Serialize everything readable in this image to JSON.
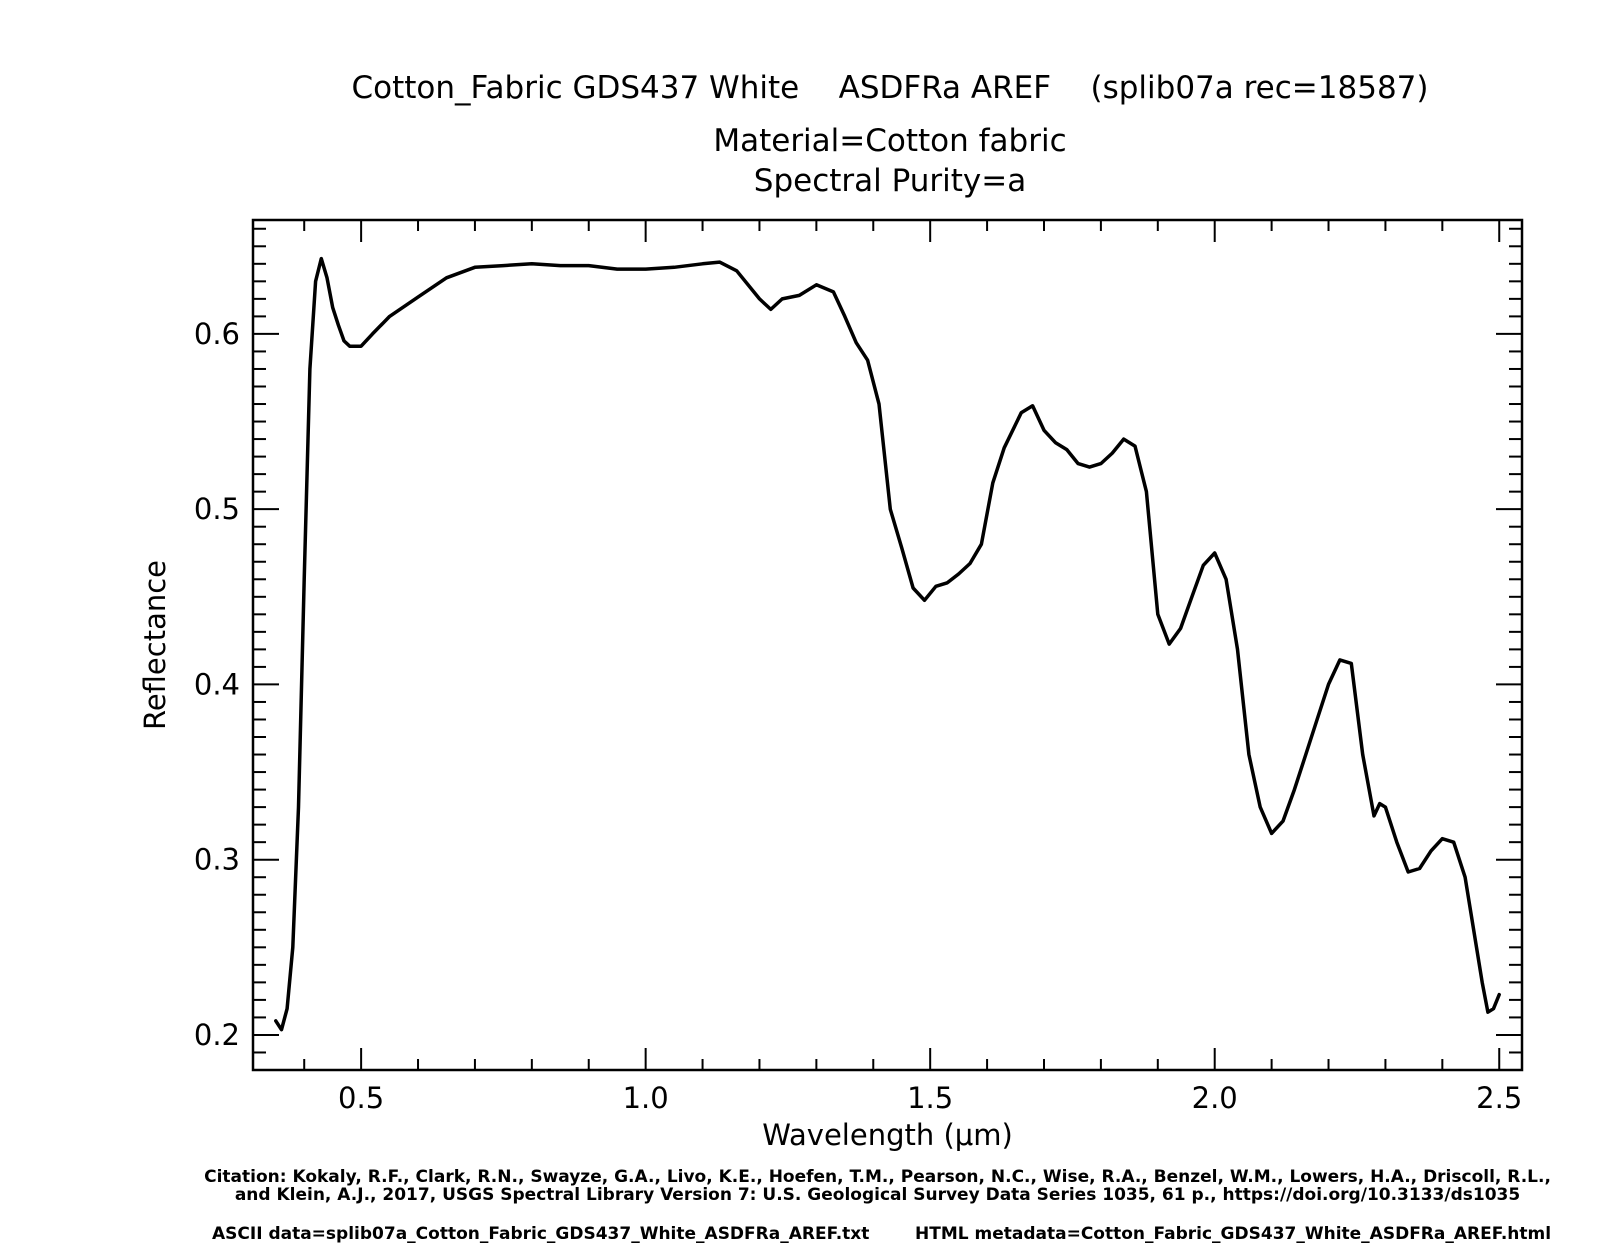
{
  "header": {
    "title_line1": "Cotton_Fabric GDS437 White    ASDFRa AREF    (splib07a rec=18587)",
    "title_line2": "Material=Cotton fabric",
    "title_line3": "Spectral Purity=a"
  },
  "footer": {
    "citation_line1": "Citation: Kokaly, R.F., Clark, R.N., Swayze, G.A., Livo, K.E., Hoefen, T.M., Pearson, N.C., Wise, R.A., Benzel, W.M., Lowers, H.A., Driscoll, R.L.,",
    "citation_line2": "and Klein, A.J., 2017, USGS Spectral Library Version 7: U.S. Geological Survey Data Series 1035, 61 p., https://doi.org/10.3133/ds1035",
    "ascii_data": "ASCII data=splib07a_Cotton_Fabric_GDS437_White_ASDFRa_AREF.txt",
    "html_metadata": "HTML metadata=Cotton_Fabric_GDS437_White_ASDFRa_AREF.html"
  },
  "chart_data": {
    "type": "line",
    "title": "Cotton_Fabric GDS437 White    ASDFRa AREF    (splib07a rec=18587)",
    "xlabel": "Wavelength (μm)",
    "ylabel": "Reflectance",
    "xlim": [
      0.31,
      2.54
    ],
    "ylim": [
      0.18,
      0.665
    ],
    "x_ticks": [
      0.5,
      1.0,
      1.5,
      2.0,
      2.5
    ],
    "x_tick_labels": [
      "0.5",
      "1.0",
      "1.5",
      "2.0",
      "2.5"
    ],
    "y_ticks": [
      0.2,
      0.3,
      0.4,
      0.5,
      0.6
    ],
    "y_tick_labels": [
      "0.2",
      "0.3",
      "0.4",
      "0.5",
      "0.6"
    ],
    "grid": false,
    "line_color": "#000000",
    "series": [
      {
        "x": [
          0.35,
          0.36,
          0.37,
          0.38,
          0.39,
          0.4,
          0.41,
          0.42,
          0.43,
          0.44,
          0.45,
          0.46,
          0.47,
          0.48,
          0.5,
          0.52,
          0.55,
          0.6,
          0.65,
          0.7,
          0.75,
          0.8,
          0.85,
          0.9,
          0.95,
          1.0,
          1.05,
          1.1,
          1.13,
          1.16,
          1.2,
          1.22,
          1.24,
          1.27,
          1.3,
          1.33,
          1.35,
          1.37,
          1.39,
          1.41,
          1.43,
          1.45,
          1.47,
          1.49,
          1.51,
          1.53,
          1.55,
          1.57,
          1.59,
          1.61,
          1.63,
          1.66,
          1.68,
          1.7,
          1.72,
          1.74,
          1.76,
          1.78,
          1.8,
          1.82,
          1.84,
          1.86,
          1.88,
          1.9,
          1.92,
          1.94,
          1.96,
          1.98,
          2.0,
          2.02,
          2.04,
          2.06,
          2.08,
          2.1,
          2.12,
          2.14,
          2.16,
          2.18,
          2.2,
          2.22,
          2.24,
          2.26,
          2.28,
          2.29,
          2.3,
          2.32,
          2.34,
          2.36,
          2.38,
          2.4,
          2.42,
          2.44,
          2.46,
          2.47,
          2.48,
          2.49,
          2.5
        ],
        "y": [
          0.208,
          0.203,
          0.215,
          0.25,
          0.33,
          0.46,
          0.58,
          0.63,
          0.643,
          0.632,
          0.615,
          0.605,
          0.596,
          0.593,
          0.593,
          0.6,
          0.61,
          0.621,
          0.632,
          0.638,
          0.639,
          0.64,
          0.639,
          0.639,
          0.637,
          0.637,
          0.638,
          0.64,
          0.641,
          0.636,
          0.62,
          0.614,
          0.62,
          0.622,
          0.628,
          0.624,
          0.61,
          0.595,
          0.585,
          0.56,
          0.5,
          0.478,
          0.455,
          0.448,
          0.456,
          0.458,
          0.463,
          0.469,
          0.48,
          0.515,
          0.535,
          0.555,
          0.559,
          0.545,
          0.538,
          0.534,
          0.526,
          0.524,
          0.526,
          0.532,
          0.54,
          0.536,
          0.51,
          0.44,
          0.423,
          0.432,
          0.45,
          0.468,
          0.475,
          0.46,
          0.42,
          0.36,
          0.33,
          0.315,
          0.322,
          0.34,
          0.36,
          0.38,
          0.4,
          0.414,
          0.412,
          0.36,
          0.325,
          0.332,
          0.33,
          0.31,
          0.293,
          0.295,
          0.305,
          0.312,
          0.31,
          0.29,
          0.25,
          0.23,
          0.213,
          0.215,
          0.223
        ]
      }
    ]
  }
}
